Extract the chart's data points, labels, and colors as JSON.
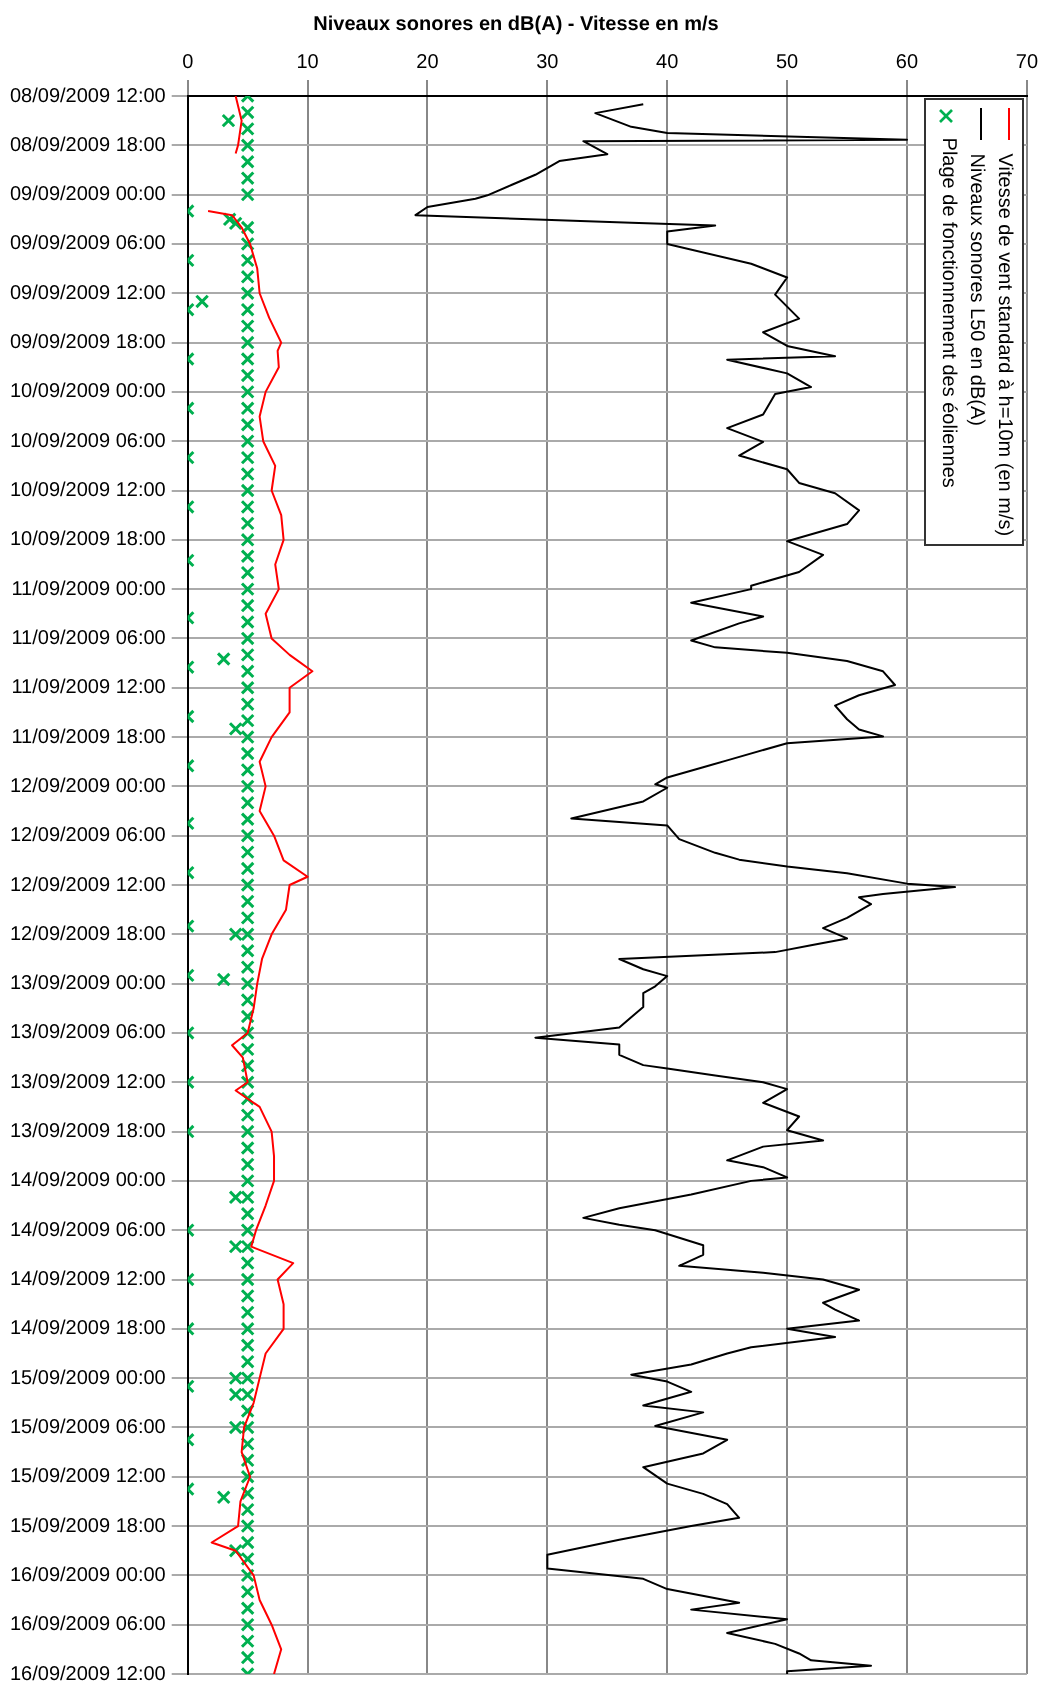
{
  "chart_data": {
    "type": "line",
    "orientation": "horizontal",
    "title": "Niveaux sonores en dB(A) - Vitesse en m/s",
    "xlim": [
      0,
      70
    ],
    "xticks": [
      0,
      10,
      20,
      30,
      40,
      50,
      60,
      70
    ],
    "ylim": [
      "2009-09-16T12:00",
      "2009-09-08T12:00"
    ],
    "yticks": [
      {
        "value": "2009-09-08T12:00",
        "label": "08/09/2009 12:00"
      },
      {
        "value": "2009-09-08T18:00",
        "label": "08/09/2009 18:00"
      },
      {
        "value": "2009-09-09T00:00",
        "label": "09/09/2009 00:00"
      },
      {
        "value": "2009-09-09T06:00",
        "label": "09/09/2009 06:00"
      },
      {
        "value": "2009-09-09T12:00",
        "label": "09/09/2009 12:00"
      },
      {
        "value": "2009-09-09T18:00",
        "label": "09/09/2009 18:00"
      },
      {
        "value": "2009-09-10T00:00",
        "label": "10/09/2009 00:00"
      },
      {
        "value": "2009-09-10T06:00",
        "label": "10/09/2009 06:00"
      },
      {
        "value": "2009-09-10T12:00",
        "label": "10/09/2009 12:00"
      },
      {
        "value": "2009-09-10T18:00",
        "label": "10/09/2009 18:00"
      },
      {
        "value": "2009-09-11T00:00",
        "label": "11/09/2009 00:00"
      },
      {
        "value": "2009-09-11T06:00",
        "label": "11/09/2009 06:00"
      },
      {
        "value": "2009-09-11T12:00",
        "label": "11/09/2009 12:00"
      },
      {
        "value": "2009-09-11T18:00",
        "label": "11/09/2009 18:00"
      },
      {
        "value": "2009-09-12T00:00",
        "label": "12/09/2009 00:00"
      },
      {
        "value": "2009-09-12T06:00",
        "label": "12/09/2009 06:00"
      },
      {
        "value": "2009-09-12T12:00",
        "label": "12/09/2009 12:00"
      },
      {
        "value": "2009-09-12T18:00",
        "label": "12/09/2009 18:00"
      },
      {
        "value": "2009-09-13T00:00",
        "label": "13/09/2009 00:00"
      },
      {
        "value": "2009-09-13T06:00",
        "label": "13/09/2009 06:00"
      },
      {
        "value": "2009-09-13T12:00",
        "label": "13/09/2009 12:00"
      },
      {
        "value": "2009-09-13T18:00",
        "label": "13/09/2009 18:00"
      },
      {
        "value": "2009-09-14T00:00",
        "label": "14/09/2009 00:00"
      },
      {
        "value": "2009-09-14T06:00",
        "label": "14/09/2009 06:00"
      },
      {
        "value": "2009-09-14T12:00",
        "label": "14/09/2009 12:00"
      },
      {
        "value": "2009-09-14T18:00",
        "label": "14/09/2009 18:00"
      },
      {
        "value": "2009-09-15T00:00",
        "label": "15/09/2009 00:00"
      },
      {
        "value": "2009-09-15T06:00",
        "label": "15/09/2009 06:00"
      },
      {
        "value": "2009-09-15T12:00",
        "label": "15/09/2009 12:00"
      },
      {
        "value": "2009-09-15T18:00",
        "label": "15/09/2009 18:00"
      },
      {
        "value": "2009-09-16T00:00",
        "label": "16/09/2009 00:00"
      },
      {
        "value": "2009-09-16T06:00",
        "label": "16/09/2009 06:00"
      },
      {
        "value": "2009-09-16T12:00",
        "label": "16/09/2009 12:00"
      }
    ],
    "grid": true,
    "legend": "top right",
    "series": [
      {
        "name": "Vitesse de vent standard à h=10m (en m/s)",
        "color": "#ff0000",
        "type": "line",
        "marker": "none",
        "x": [
          "2009-09-08T12:00",
          "2009-09-08T15:00",
          "2009-09-08T18:00",
          "2009-09-08T19:00",
          "2009-09-08T22:00",
          "2009-09-09T02:00",
          "2009-09-09T02:30",
          "2009-09-09T04:00",
          "2009-09-09T06:00",
          "2009-09-09T09:00",
          "2009-09-09T12:00",
          "2009-09-09T15:00",
          "2009-09-09T18:00",
          "2009-09-09T19:00",
          "2009-09-09T21:00",
          "2009-09-10T00:00",
          "2009-09-10T03:00",
          "2009-09-10T06:00",
          "2009-09-10T09:00",
          "2009-09-10T12:00",
          "2009-09-10T15:00",
          "2009-09-10T18:00",
          "2009-09-10T21:00",
          "2009-09-11T00:00",
          "2009-09-11T03:00",
          "2009-09-11T06:00",
          "2009-09-11T08:00",
          "2009-09-11T10:00",
          "2009-09-11T12:00",
          "2009-09-11T15:00",
          "2009-09-11T18:00",
          "2009-09-11T21:00",
          "2009-09-12T00:00",
          "2009-09-12T03:00",
          "2009-09-12T06:00",
          "2009-09-12T09:00",
          "2009-09-12T11:00",
          "2009-09-12T12:00",
          "2009-09-12T15:00",
          "2009-09-12T18:00",
          "2009-09-12T21:00",
          "2009-09-13T00:00",
          "2009-09-13T03:00",
          "2009-09-13T06:00",
          "2009-09-13T07:30",
          "2009-09-13T09:00",
          "2009-09-13T12:00",
          "2009-09-13T13:00",
          "2009-09-13T15:00",
          "2009-09-13T18:00",
          "2009-09-13T21:00",
          "2009-09-14T00:00",
          "2009-09-14T03:00",
          "2009-09-14T06:00",
          "2009-09-14T08:00",
          "2009-09-14T10:00",
          "2009-09-14T12:00",
          "2009-09-14T15:00",
          "2009-09-14T18:00",
          "2009-09-14T21:00",
          "2009-09-15T00:00",
          "2009-09-15T03:00",
          "2009-09-15T06:00",
          "2009-09-15T09:00",
          "2009-09-15T12:00",
          "2009-09-15T15:00",
          "2009-09-15T18:00",
          "2009-09-15T20:00",
          "2009-09-15T21:00",
          "2009-09-16T00:00",
          "2009-09-16T03:00",
          "2009-09-16T06:00",
          "2009-09-16T09:00",
          "2009-09-16T12:00"
        ],
        "values": [
          4.0,
          4.5,
          4.2,
          4.0,
          null,
          1.7,
          3.7,
          4.5,
          5.2,
          5.8,
          6.0,
          6.8,
          7.8,
          7.5,
          7.6,
          6.5,
          6.0,
          6.3,
          7.3,
          7.0,
          7.8,
          8.0,
          7.3,
          7.6,
          6.5,
          7.0,
          8.5,
          10.4,
          8.5,
          8.5,
          7.0,
          6.0,
          6.5,
          6.0,
          7.2,
          8.0,
          10.0,
          8.5,
          8.2,
          7.0,
          6.2,
          5.8,
          5.5,
          5.0,
          3.7,
          4.6,
          5.0,
          4.0,
          6.0,
          7.0,
          7.2,
          7.2,
          6.5,
          5.7,
          5.3,
          8.8,
          7.5,
          8.0,
          8.0,
          6.5,
          6.0,
          5.5,
          4.7,
          4.5,
          5.2,
          4.4,
          4.2,
          2.0,
          4.0,
          5.5,
          6.0,
          7.0,
          7.8,
          7.2
        ]
      },
      {
        "name": "Niveaux sonores L50 en dB(A)",
        "color": "#000000",
        "type": "line",
        "marker": "none",
        "x": [
          "2009-09-08T13:00",
          "2009-09-08T14:05",
          "2009-09-08T15:45",
          "2009-09-08T16:30",
          "2009-09-08T17:20",
          "2009-09-08T17:30",
          "2009-09-08T19:05",
          "2009-09-08T19:55",
          "2009-09-08T21:35",
          "2009-09-08T22:50",
          "2009-09-09T00:05",
          "2009-09-09T00:30",
          "2009-09-09T01:30",
          "2009-09-09T02:30",
          "2009-09-09T03:25",
          "2009-09-09T03:45",
          "2009-09-09T04:30",
          "2009-09-09T06:00",
          "2009-09-09T08:25",
          "2009-09-09T10:05",
          "2009-09-09T12:10",
          "2009-09-09T15:05",
          "2009-09-09T16:45",
          "2009-09-09T18:25",
          "2009-09-09T19:40",
          "2009-09-09T20:05",
          "2009-09-09T21:45",
          "2009-09-09T23:25",
          "2009-09-10T00:15",
          "2009-09-10T02:45",
          "2009-09-10T04:25",
          "2009-09-10T06:05",
          "2009-09-10T07:45",
          "2009-09-10T09:25",
          "2009-09-10T11:05",
          "2009-09-10T12:20",
          "2009-09-10T14:25",
          "2009-09-10T16:05",
          "2009-09-10T18:10",
          "2009-09-10T19:50",
          "2009-09-10T21:55",
          "2009-09-10T23:35",
          "2009-09-11T00:00",
          "2009-09-11T01:40",
          "2009-09-11T03:20",
          "2009-09-11T04:10",
          "2009-09-11T06:15",
          "2009-09-11T07:05",
          "2009-09-11T07:45",
          "2009-09-11T08:45",
          "2009-09-11T10:00",
          "2009-09-11T11:40",
          "2009-09-11T12:55",
          "2009-09-11T14:10",
          "2009-09-11T15:50",
          "2009-09-11T17:05",
          "2009-09-11T17:55",
          "2009-09-11T18:45",
          "2009-09-11T20:50",
          "2009-09-11T21:40",
          "2009-09-11T22:55",
          "2009-09-11T23:45",
          "2009-09-12T00:10",
          "2009-09-12T01:50",
          "2009-09-12T03:55",
          "2009-09-12T04:45",
          "2009-09-12T06:25",
          "2009-09-12T08:05",
          "2009-09-12T08:55",
          "2009-09-12T09:45",
          "2009-09-12T10:35",
          "2009-09-12T11:50",
          "2009-09-12T12:15",
          "2009-09-12T13:05",
          "2009-09-12T13:30",
          "2009-09-12T14:20",
          "2009-09-12T16:00",
          "2009-09-12T17:15",
          "2009-09-12T18:30",
          "2009-09-12T19:20",
          "2009-09-12T20:10",
          "2009-09-12T21:00",
          "2009-09-12T22:15",
          "2009-09-12T23:05",
          "2009-09-13T00:20",
          "2009-09-13T01:10",
          "2009-09-13T02:50",
          "2009-09-13T05:20",
          "2009-09-13T06:35",
          "2009-09-13T07:25",
          "2009-09-13T08:40",
          "2009-09-13T09:55",
          "2009-09-13T10:20",
          "2009-09-13T11:10",
          "2009-09-13T12:00",
          "2009-09-13T12:50",
          "2009-09-13T14:30",
          "2009-09-13T16:10",
          "2009-09-13T17:50",
          "2009-09-13T19:05",
          "2009-09-13T19:50",
          "2009-09-13T21:30",
          "2009-09-13T22:20",
          "2009-09-13T23:35",
          "2009-09-14T00:00",
          "2009-09-14T01:40",
          "2009-09-14T03:20",
          "2009-09-14T04:30",
          "2009-09-14T05:20",
          "2009-09-14T06:00",
          "2009-09-14T07:50",
          "2009-09-14T09:00",
          "2009-09-14T10:20",
          "2009-09-14T11:10",
          "2009-09-14T12:00",
          "2009-09-14T13:15",
          "2009-09-14T14:50",
          "2009-09-14T15:40",
          "2009-09-14T17:00",
          "2009-09-14T18:00",
          "2009-09-14T19:00",
          "2009-09-14T20:15",
          "2009-09-14T21:00",
          "2009-09-14T22:20",
          "2009-09-14T23:35",
          "2009-09-15T00:25",
          "2009-09-15T01:40",
          "2009-09-15T03:20",
          "2009-09-15T04:10",
          "2009-09-15T05:50",
          "2009-09-15T07:30",
          "2009-09-15T09:10",
          "2009-09-15T10:50",
          "2009-09-15T12:50",
          "2009-09-15T14:05",
          "2009-09-15T15:20",
          "2009-09-15T17:00",
          "2009-09-15T18:00",
          "2009-09-15T19:40",
          "2009-09-15T21:30",
          "2009-09-15T23:10",
          "2009-09-16T00:25",
          "2009-09-16T01:40",
          "2009-09-16T03:20",
          "2009-09-16T04:10",
          "2009-09-16T05:20",
          "2009-09-16T07:00",
          "2009-09-16T08:20",
          "2009-09-16T09:30",
          "2009-09-16T10:20",
          "2009-09-16T11:00",
          "2009-09-16T11:40",
          "2009-09-16T12:00"
        ],
        "values": [
          38,
          34,
          37,
          40,
          60,
          33,
          35,
          31,
          29,
          27,
          25,
          24,
          20,
          19,
          37,
          44,
          40,
          40,
          47,
          50,
          49,
          51,
          48,
          50,
          54,
          45,
          50,
          52,
          49,
          48,
          45,
          48,
          46,
          50,
          51,
          54,
          56,
          55,
          50,
          53,
          51,
          47,
          47,
          42,
          48,
          46,
          42,
          44,
          50,
          55,
          58,
          59,
          56,
          54,
          55,
          56,
          58,
          50,
          45,
          43,
          40,
          39,
          40,
          38,
          32,
          40,
          41,
          44,
          46,
          50,
          55,
          60,
          64,
          58,
          56,
          57,
          55,
          53,
          55,
          52,
          49,
          36,
          38,
          40,
          39,
          38,
          38,
          36,
          29,
          36,
          36,
          38,
          40,
          44,
          48,
          50,
          48,
          51,
          50,
          53,
          48,
          45,
          48,
          50,
          47,
          42,
          36,
          33,
          36,
          39,
          43,
          43,
          41,
          48,
          53,
          56,
          53,
          54,
          56,
          50,
          54,
          47,
          45,
          42,
          37,
          40,
          42,
          38,
          43,
          39,
          45,
          43,
          38,
          40,
          43,
          45,
          46,
          42,
          36,
          30,
          30,
          38,
          40,
          46,
          42,
          50,
          45,
          49,
          51,
          52,
          57,
          50,
          50
        ]
      },
      {
        "name": "Plage de fonctionnement des éoliennes",
        "color": "#00b050",
        "type": "scatter",
        "marker": "cross",
        "x": [
          "2009-09-08T12:00",
          "2009-09-08T14:00",
          "2009-09-08T16:00",
          "2009-09-08T18:00",
          "2009-09-08T20:00",
          "2009-09-08T22:00",
          "2009-09-09T00:00",
          "2009-09-09T04:00",
          "2009-09-09T06:00",
          "2009-09-09T08:00",
          "2009-09-09T10:00",
          "2009-09-09T12:00",
          "2009-09-09T14:00",
          "2009-09-09T16:00",
          "2009-09-09T18:00",
          "2009-09-09T20:00",
          "2009-09-09T22:00",
          "2009-09-10T00:00",
          "2009-09-10T02:00",
          "2009-09-10T04:00",
          "2009-09-10T06:00",
          "2009-09-10T08:00",
          "2009-09-10T10:00",
          "2009-09-10T12:00",
          "2009-09-10T14:00",
          "2009-09-10T16:00",
          "2009-09-10T18:00",
          "2009-09-10T20:00",
          "2009-09-10T22:00",
          "2009-09-11T00:00",
          "2009-09-11T02:00",
          "2009-09-11T04:00",
          "2009-09-11T06:00",
          "2009-09-11T08:00",
          "2009-09-11T10:00",
          "2009-09-11T12:00",
          "2009-09-11T14:00",
          "2009-09-11T16:00",
          "2009-09-11T18:00",
          "2009-09-11T20:00",
          "2009-09-11T22:00",
          "2009-09-12T00:00",
          "2009-09-12T02:00",
          "2009-09-12T04:00",
          "2009-09-12T06:00",
          "2009-09-12T08:00",
          "2009-09-12T10:00",
          "2009-09-12T12:00",
          "2009-09-12T14:00",
          "2009-09-12T16:00",
          "2009-09-12T18:00",
          "2009-09-12T20:00",
          "2009-09-12T22:00",
          "2009-09-13T00:00",
          "2009-09-13T02:00",
          "2009-09-13T04:00",
          "2009-09-13T06:00",
          "2009-09-13T08:00",
          "2009-09-13T10:00",
          "2009-09-13T12:00",
          "2009-09-13T14:00",
          "2009-09-13T16:00",
          "2009-09-13T18:00",
          "2009-09-13T20:00",
          "2009-09-13T22:00",
          "2009-09-14T00:00",
          "2009-09-14T02:00",
          "2009-09-14T04:00",
          "2009-09-14T06:00",
          "2009-09-14T08:00",
          "2009-09-14T10:00",
          "2009-09-14T12:00",
          "2009-09-14T14:00",
          "2009-09-14T16:00",
          "2009-09-14T18:00",
          "2009-09-14T20:00",
          "2009-09-14T22:00",
          "2009-09-15T00:00",
          "2009-09-15T02:00",
          "2009-09-15T04:00",
          "2009-09-15T06:00",
          "2009-09-15T08:00",
          "2009-09-15T10:00",
          "2009-09-15T12:00",
          "2009-09-15T14:00",
          "2009-09-15T16:00",
          "2009-09-15T18:00",
          "2009-09-15T20:00",
          "2009-09-15T22:00",
          "2009-09-16T00:00",
          "2009-09-16T02:00",
          "2009-09-16T04:00",
          "2009-09-16T06:00",
          "2009-09-16T08:00",
          "2009-09-16T10:00",
          "2009-09-16T12:00",
          "2009-09-09T02:00",
          "2009-09-09T08:00",
          "2009-09-09T14:00",
          "2009-09-09T20:00",
          "2009-09-10T02:00",
          "2009-09-10T08:00",
          "2009-09-10T14:00",
          "2009-09-10T20:30",
          "2009-09-11T03:30",
          "2009-09-11T09:30",
          "2009-09-11T15:30",
          "2009-09-11T21:30",
          "2009-09-12T04:30",
          "2009-09-12T10:30",
          "2009-09-12T17:00",
          "2009-09-12T23:00",
          "2009-09-13T06:00",
          "2009-09-13T12:00",
          "2009-09-13T18:00",
          "2009-09-14T06:00",
          "2009-09-14T12:00",
          "2009-09-14T18:00",
          "2009-09-15T01:00",
          "2009-09-15T07:30",
          "2009-09-15T13:30",
          "2009-09-08T15:00",
          "2009-09-09T03:00",
          "2009-09-09T03:30",
          "2009-09-09T13:00",
          "2009-09-11T08:30",
          "2009-09-11T17:00",
          "2009-09-12T18:00",
          "2009-09-12T23:30",
          "2009-09-14T02:00",
          "2009-09-14T08:00",
          "2009-09-15T00:00",
          "2009-09-15T02:00",
          "2009-09-15T06:00",
          "2009-09-15T14:30",
          "2009-09-15T21:00"
        ],
        "values": [
          5,
          5,
          5,
          5,
          5,
          5,
          5,
          5,
          5,
          5,
          5,
          5,
          5,
          5,
          5,
          5,
          5,
          5,
          5,
          5,
          5,
          5,
          5,
          5,
          5,
          5,
          5,
          5,
          5,
          5,
          5,
          5,
          5,
          5,
          5,
          5,
          5,
          5,
          5,
          5,
          5,
          5,
          5,
          5,
          5,
          5,
          5,
          5,
          5,
          5,
          5,
          5,
          5,
          5,
          5,
          5,
          5,
          5,
          5,
          5,
          5,
          5,
          5,
          5,
          5,
          5,
          5,
          5,
          5,
          5,
          5,
          5,
          5,
          5,
          5,
          5,
          5,
          5,
          5,
          5,
          5,
          5,
          5,
          5,
          5,
          5,
          5,
          5,
          5,
          5,
          5,
          5,
          5,
          5,
          5,
          5,
          0,
          0,
          0,
          0,
          0,
          0,
          0,
          0,
          0,
          0,
          0,
          0,
          0,
          0,
          0,
          0,
          0,
          0,
          0,
          0,
          0,
          0,
          0,
          0,
          0,
          3.4,
          3.5,
          4,
          1.2,
          3,
          4,
          4,
          3,
          4,
          4,
          4,
          4,
          4,
          3,
          4
        ]
      }
    ]
  }
}
